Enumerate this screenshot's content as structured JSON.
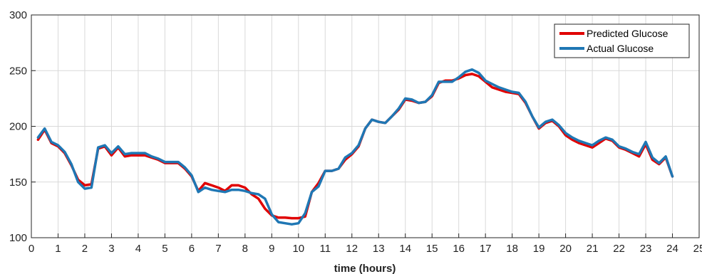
{
  "chart_data": {
    "type": "line",
    "title": "",
    "xlabel": "time (hours)",
    "ylabel": "",
    "xlim": [
      0,
      25
    ],
    "ylim": [
      100,
      300
    ],
    "xticks": [
      0,
      1,
      2,
      3,
      4,
      5,
      6,
      7,
      8,
      9,
      10,
      11,
      12,
      13,
      14,
      15,
      16,
      17,
      18,
      19,
      20,
      21,
      22,
      23,
      24,
      25
    ],
    "yticks": [
      100,
      150,
      200,
      250,
      300
    ],
    "grid": true,
    "legend_position": "top-right",
    "series": [
      {
        "name": "Predicted Glucose",
        "color": "#e00000",
        "points": [
          [
            0.25,
            188
          ],
          [
            0.5,
            197
          ],
          [
            0.75,
            185
          ],
          [
            1.0,
            182
          ],
          [
            1.25,
            176
          ],
          [
            1.5,
            165
          ],
          [
            1.75,
            152
          ],
          [
            2.0,
            147
          ],
          [
            2.25,
            148
          ],
          [
            2.5,
            180
          ],
          [
            2.75,
            182
          ],
          [
            3.0,
            174
          ],
          [
            3.25,
            181
          ],
          [
            3.5,
            173
          ],
          [
            3.75,
            174
          ],
          [
            4.0,
            174
          ],
          [
            4.25,
            174
          ],
          [
            4.5,
            172
          ],
          [
            4.75,
            170
          ],
          [
            5.0,
            167
          ],
          [
            5.25,
            167
          ],
          [
            5.5,
            167
          ],
          [
            5.75,
            162
          ],
          [
            6.0,
            155
          ],
          [
            6.25,
            142
          ],
          [
            6.5,
            149
          ],
          [
            6.75,
            147
          ],
          [
            7.0,
            145
          ],
          [
            7.25,
            142
          ],
          [
            7.5,
            147
          ],
          [
            7.75,
            147
          ],
          [
            8.0,
            145
          ],
          [
            8.25,
            139
          ],
          [
            8.5,
            135
          ],
          [
            8.75,
            126
          ],
          [
            9.0,
            120
          ],
          [
            9.25,
            118
          ],
          [
            9.5,
            118
          ],
          [
            9.75,
            117.5
          ],
          [
            10.0,
            117.5
          ],
          [
            10.25,
            119
          ],
          [
            10.5,
            141
          ],
          [
            10.75,
            149
          ],
          [
            11.0,
            160
          ],
          [
            11.25,
            160
          ],
          [
            11.5,
            162
          ],
          [
            11.75,
            170
          ],
          [
            12.0,
            175
          ],
          [
            12.25,
            182
          ],
          [
            12.5,
            198
          ],
          [
            12.75,
            206
          ],
          [
            13.0,
            204
          ],
          [
            13.25,
            203
          ],
          [
            13.5,
            209
          ],
          [
            13.75,
            215
          ],
          [
            14.0,
            224
          ],
          [
            14.25,
            223
          ],
          [
            14.5,
            221
          ],
          [
            14.75,
            222
          ],
          [
            15.0,
            227
          ],
          [
            15.25,
            239
          ],
          [
            15.5,
            241
          ],
          [
            15.75,
            241
          ],
          [
            16.0,
            243
          ],
          [
            16.25,
            246
          ],
          [
            16.5,
            247
          ],
          [
            16.75,
            245
          ],
          [
            17.0,
            240
          ],
          [
            17.25,
            235
          ],
          [
            17.5,
            233
          ],
          [
            17.75,
            231
          ],
          [
            18.0,
            230
          ],
          [
            18.25,
            229
          ],
          [
            18.5,
            221
          ],
          [
            18.75,
            209
          ],
          [
            19.0,
            198
          ],
          [
            19.25,
            203
          ],
          [
            19.5,
            205
          ],
          [
            19.75,
            200
          ],
          [
            20.0,
            192
          ],
          [
            20.25,
            188
          ],
          [
            20.5,
            185
          ],
          [
            20.75,
            183
          ],
          [
            21.0,
            181
          ],
          [
            21.25,
            185
          ],
          [
            21.5,
            189
          ],
          [
            21.75,
            187
          ],
          [
            22.0,
            181
          ],
          [
            22.25,
            179
          ],
          [
            22.5,
            176
          ],
          [
            22.75,
            173
          ],
          [
            23.0,
            184
          ],
          [
            23.25,
            170
          ],
          [
            23.5,
            166
          ],
          [
            23.75,
            172
          ],
          [
            24.0,
            155
          ]
        ]
      },
      {
        "name": "Actual Glucose",
        "color": "#1f77b4",
        "points": [
          [
            0.25,
            190
          ],
          [
            0.5,
            198
          ],
          [
            0.75,
            186
          ],
          [
            1.0,
            183
          ],
          [
            1.25,
            177
          ],
          [
            1.5,
            166
          ],
          [
            1.75,
            150
          ],
          [
            2.0,
            144
          ],
          [
            2.25,
            145
          ],
          [
            2.5,
            181
          ],
          [
            2.75,
            183
          ],
          [
            3.0,
            176
          ],
          [
            3.25,
            182
          ],
          [
            3.5,
            175
          ],
          [
            3.75,
            176
          ],
          [
            4.0,
            176
          ],
          [
            4.25,
            176
          ],
          [
            4.5,
            173
          ],
          [
            4.75,
            171
          ],
          [
            5.0,
            168
          ],
          [
            5.25,
            168
          ],
          [
            5.5,
            168
          ],
          [
            5.75,
            163
          ],
          [
            6.0,
            156
          ],
          [
            6.25,
            141
          ],
          [
            6.5,
            145
          ],
          [
            6.75,
            143
          ],
          [
            7.0,
            142
          ],
          [
            7.25,
            141
          ],
          [
            7.5,
            143
          ],
          [
            7.75,
            143
          ],
          [
            8.0,
            142
          ],
          [
            8.25,
            140
          ],
          [
            8.5,
            139
          ],
          [
            8.75,
            135
          ],
          [
            9.0,
            121
          ],
          [
            9.25,
            114
          ],
          [
            9.5,
            113
          ],
          [
            9.75,
            112
          ],
          [
            10.0,
            113
          ],
          [
            10.25,
            122
          ],
          [
            10.5,
            141
          ],
          [
            10.75,
            146
          ],
          [
            11.0,
            160
          ],
          [
            11.25,
            160
          ],
          [
            11.5,
            162
          ],
          [
            11.75,
            172
          ],
          [
            12.0,
            176
          ],
          [
            12.25,
            183
          ],
          [
            12.5,
            198
          ],
          [
            12.75,
            206
          ],
          [
            13.0,
            204
          ],
          [
            13.25,
            203
          ],
          [
            13.5,
            209
          ],
          [
            13.75,
            216
          ],
          [
            14.0,
            225
          ],
          [
            14.25,
            224
          ],
          [
            14.5,
            221
          ],
          [
            14.75,
            222
          ],
          [
            15.0,
            228
          ],
          [
            15.25,
            240
          ],
          [
            15.5,
            240
          ],
          [
            15.75,
            240
          ],
          [
            16.0,
            244
          ],
          [
            16.25,
            249
          ],
          [
            16.5,
            251
          ],
          [
            16.75,
            248
          ],
          [
            17.0,
            241
          ],
          [
            17.25,
            238
          ],
          [
            17.5,
            235
          ],
          [
            17.75,
            233
          ],
          [
            18.0,
            231
          ],
          [
            18.25,
            230
          ],
          [
            18.5,
            222
          ],
          [
            18.75,
            209
          ],
          [
            19.0,
            199
          ],
          [
            19.25,
            204
          ],
          [
            19.5,
            206
          ],
          [
            19.75,
            201
          ],
          [
            20.0,
            194
          ],
          [
            20.25,
            190
          ],
          [
            20.5,
            187
          ],
          [
            20.75,
            185
          ],
          [
            21.0,
            183
          ],
          [
            21.25,
            187
          ],
          [
            21.5,
            190
          ],
          [
            21.75,
            188
          ],
          [
            22.0,
            182
          ],
          [
            22.25,
            180
          ],
          [
            22.5,
            177
          ],
          [
            22.75,
            175
          ],
          [
            23.0,
            186
          ],
          [
            23.25,
            172
          ],
          [
            23.5,
            167
          ],
          [
            23.75,
            173
          ],
          [
            24.0,
            155
          ]
        ]
      }
    ]
  }
}
